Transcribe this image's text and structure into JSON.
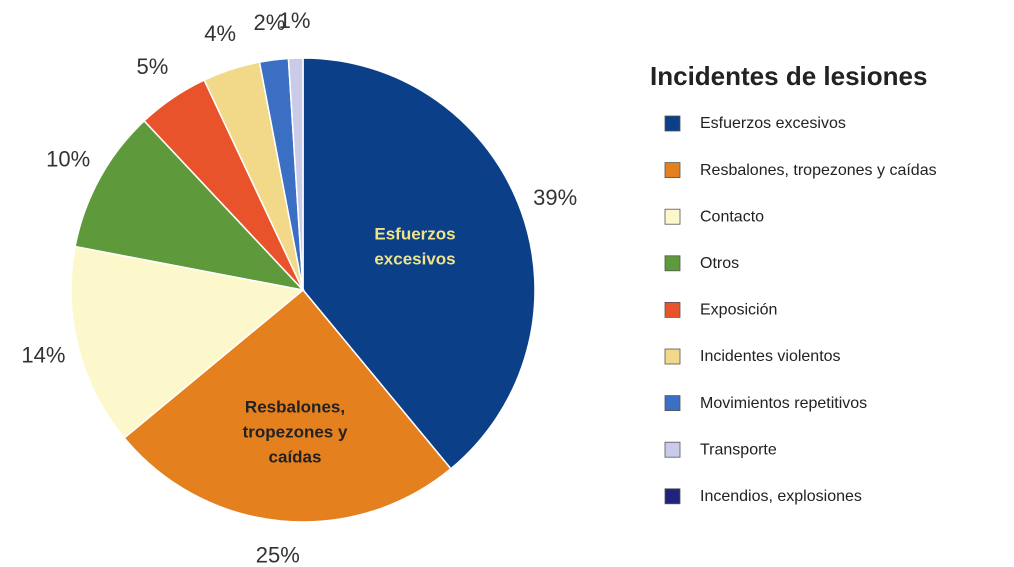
{
  "chart_data": {
    "type": "pie",
    "legend_title": "Incidentes de lesiones",
    "categories": [
      "Esfuerzos excesivos",
      "Resbalones, tropezones y caídas",
      "Contacto",
      "Otros",
      "Exposición",
      "Incidentes violentos",
      "Movimientos repetitivos",
      "Transporte",
      "Incendios, explosiones"
    ],
    "values": [
      39,
      25,
      14,
      10,
      5,
      4,
      2,
      1,
      0
    ],
    "value_labels": [
      "39%",
      "25%",
      "14%",
      "10%",
      "5%",
      "4%",
      "2%",
      "1%",
      null
    ],
    "colors": [
      "#0b3f87",
      "#e5801f",
      "#fdf8cc",
      "#5e9a3c",
      "#e8532b",
      "#f2d98a",
      "#3a6fc3",
      "#cacae9",
      "#1f237a"
    ],
    "annotations": [
      {
        "lines": [
          "Esfuerzos",
          "excesivos"
        ],
        "color": "#eee38a"
      },
      {
        "lines": [
          "Resbalones,",
          "tropezones y",
          "caídas"
        ],
        "color": "#222222"
      }
    ],
    "legend": "right"
  }
}
